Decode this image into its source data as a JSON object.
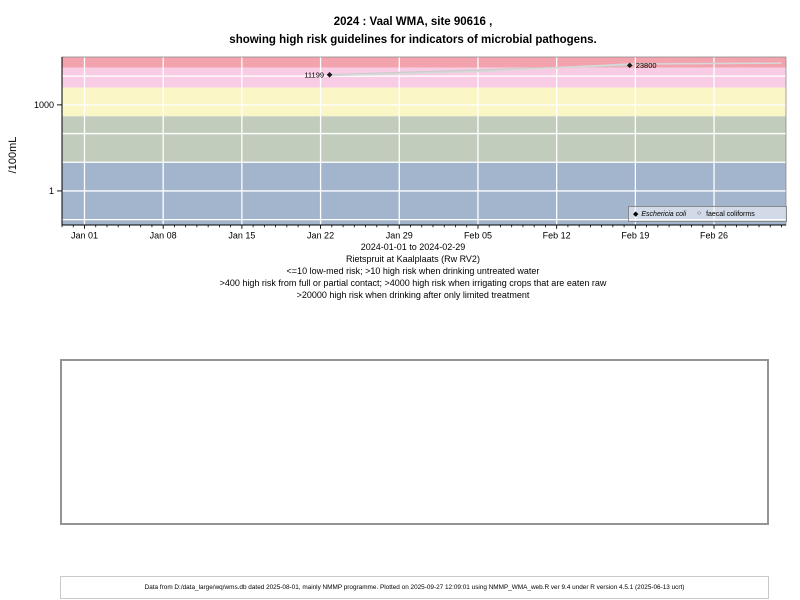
{
  "title": {
    "line1": "2024 : Vaal WMA, site 90616 ,",
    "line2": "showing high risk guidelines for indicators of microbial pathogens."
  },
  "captions": {
    "date_range": "2024-01-01 to 2024-02-29",
    "station": "Rietspruit at Kaalplaats (Rw RV2)",
    "guidelines": [
      "<=10 low-med risk; >10 high risk when drinking untreated water",
      ">400 high risk from full or partial contact; >4000 high risk when irrigating crops that are eaten raw",
      ">20000 high risk when drinking after only limited treatment"
    ]
  },
  "footer": {
    "text": "Data from D:/data_large/wq/wms.db dated 2025-08-01, mainly NMMP programme. Plotted on 2025-09-27 12:09:01 using NMMP_WMA_web.R ver 9.4 under R version 4.5.1 (2025-06-13 ucrt)"
  },
  "chart_data": {
    "type": "line",
    "title": "2024 : Vaal WMA, site 90616 , showing high risk guidelines for indicators of microbial pathogens.",
    "xlabel": "",
    "ylabel": "/100mL",
    "y_scale": "log10",
    "y_range": [
      0.065,
      46600
    ],
    "y_ticks": [
      {
        "value": 1000,
        "label": "1000"
      },
      {
        "value": 1,
        "label": "1"
      }
    ],
    "y_gridline_values": [
      0.1,
      1,
      10,
      100,
      1000,
      10000
    ],
    "x_range_days": [
      -2,
      62.4
    ],
    "x_ticks": [
      {
        "day": 0,
        "label": "Jan 01"
      },
      {
        "day": 7,
        "label": "Jan 08"
      },
      {
        "day": 14,
        "label": "Jan 15"
      },
      {
        "day": 21,
        "label": "Jan 22"
      },
      {
        "day": 28,
        "label": "Jan 29"
      },
      {
        "day": 35,
        "label": "Feb 05"
      },
      {
        "day": 42,
        "label": "Feb 12"
      },
      {
        "day": 49,
        "label": "Feb 19"
      },
      {
        "day": 56,
        "label": "Feb 26"
      }
    ],
    "x_minor_ticks": {
      "from": -2,
      "to": 62,
      "step": 1
    },
    "grid": true,
    "risk_bands": [
      {
        "name": "gt-20000",
        "risk": "high risk when drinking after only limited treatment",
        "from": 20000,
        "to": 46600,
        "color": "#F2A3AE"
      },
      {
        "name": "4000-20000",
        "risk": "high risk when irrigating crops that are eaten raw",
        "from": 4000,
        "to": 20000,
        "color": "#F9CCE6"
      },
      {
        "name": "400-4000",
        "risk": "high risk from full or partial contact",
        "from": 400,
        "to": 4000,
        "color": "#FAF6C6"
      },
      {
        "name": "10-400",
        "risk": "high risk when drinking untreated water",
        "from": 10,
        "to": 400,
        "color": "#C2CCBC"
      },
      {
        "name": "le-10",
        "risk": "low-med risk",
        "from": 0.065,
        "to": 10,
        "color": "#A3B4CD"
      }
    ],
    "series": [
      {
        "name": "Eschericia coli",
        "marker": "diamond",
        "marker_color": "#1a1a1a",
        "line_color": "#cccccc",
        "points": [
          {
            "day": 21.8,
            "value": 11199,
            "label": "11199",
            "label_side": "left"
          },
          {
            "day": 48.5,
            "value": 23800,
            "label": "23800",
            "label_side": "right"
          }
        ]
      },
      {
        "name": "faecal coliforms",
        "marker": "none",
        "line_color": "#d8d8d8",
        "points": [
          {
            "day": 21.8,
            "value": 10500
          },
          {
            "day": 35,
            "value": 14500
          },
          {
            "day": 48.5,
            "value": 26500
          },
          {
            "day": 62,
            "value": 28500
          }
        ]
      }
    ],
    "legend": {
      "position": "bottom-right",
      "entries": [
        {
          "symbol": "◆",
          "label": "Eschericia coli",
          "italic": true
        },
        {
          "symbol": "○",
          "label": "faecal coliforms",
          "italic": false
        }
      ]
    }
  }
}
